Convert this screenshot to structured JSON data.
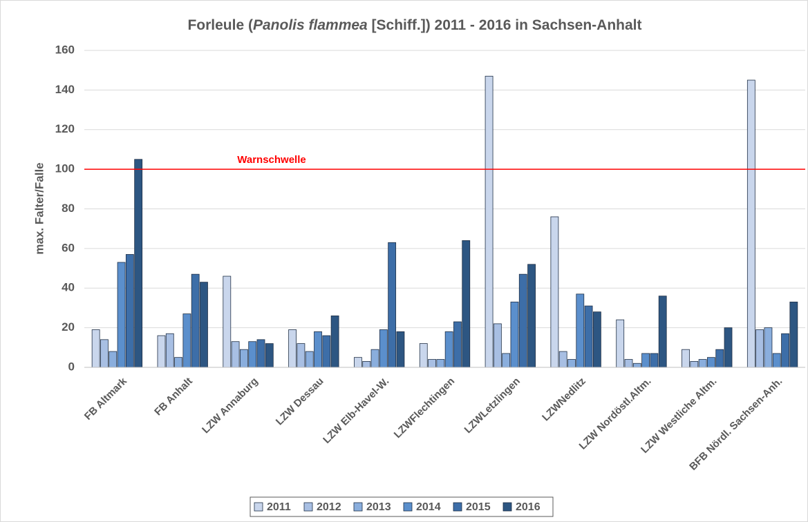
{
  "chart_data": {
    "type": "bar",
    "title": [
      "Forleule (",
      "Panolis flammea",
      " [Schiff.]) 2011 - 2016 in Sachsen-Anhalt"
    ],
    "y_label": "max. Falter/Falle",
    "categories": [
      "FB Altmark",
      "FB Anhalt",
      "LZW Annaburg",
      "LZW Dessau",
      "LZW Elb-Havel-W.",
      "LZWFlechtingen",
      "LZWLetzlingen",
      "LZWNedlitz",
      "LZW Nordöstl.Altm.",
      "LZW Westliche Altm.",
      "BFB Nördl. Sachsen-Anh."
    ],
    "series": [
      {
        "name": "2011",
        "color": "#c9d6ec",
        "values": [
          19,
          16,
          46,
          19,
          5,
          12,
          147,
          76,
          24,
          9,
          145
        ]
      },
      {
        "name": "2012",
        "color": "#a8bfe3",
        "values": [
          14,
          17,
          13,
          12,
          3,
          4,
          22,
          8,
          4,
          3,
          19
        ]
      },
      {
        "name": "2013",
        "color": "#8aaedd",
        "values": [
          8,
          5,
          9,
          8,
          9,
          4,
          7,
          4,
          2,
          4,
          20
        ]
      },
      {
        "name": "2014",
        "color": "#5b8fcc",
        "values": [
          53,
          27,
          13,
          18,
          19,
          18,
          33,
          37,
          7,
          5,
          7
        ]
      },
      {
        "name": "2015",
        "color": "#3d6ea8",
        "values": [
          57,
          47,
          14,
          16,
          63,
          23,
          47,
          31,
          7,
          9,
          17
        ]
      },
      {
        "name": "2016",
        "color": "#2d5682",
        "values": [
          105,
          43,
          12,
          26,
          18,
          64,
          52,
          28,
          36,
          20,
          33
        ]
      }
    ],
    "ylim": [
      0,
      160
    ],
    "yticks": [
      0,
      20,
      40,
      60,
      80,
      100,
      120,
      140,
      160
    ],
    "grid": true,
    "threshold": {
      "label": "Warnschwelle",
      "value": 100,
      "color": "#ff0000"
    },
    "legend": "bottom"
  }
}
